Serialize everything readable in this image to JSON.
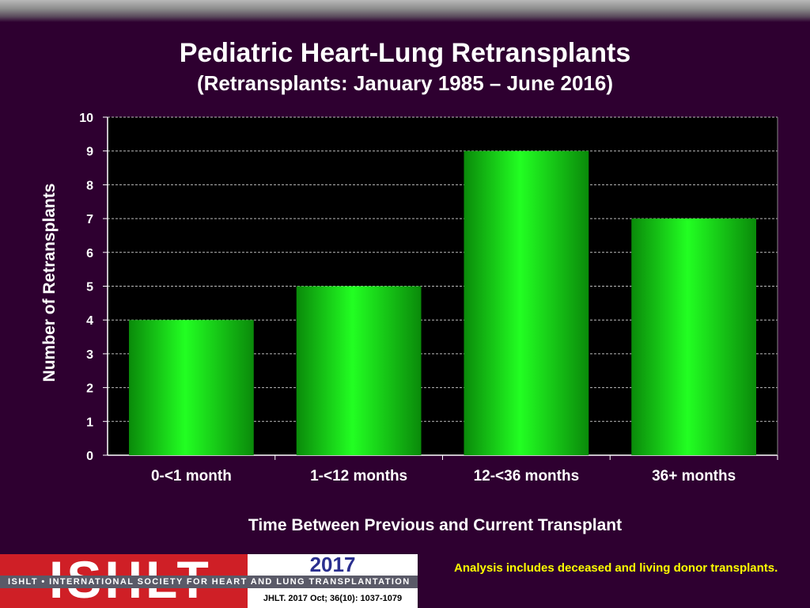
{
  "chart_data": {
    "type": "bar",
    "title": "Pediatric Heart-Lung Retransplants",
    "subtitle": "(Retransplants: January 1985 – June 2016)",
    "xlabel": "Time Between Previous and Current Transplant",
    "ylabel": "Number of Retransplants",
    "categories": [
      "0-<1 month",
      "1-<12 months",
      "12-<36 months",
      "36+ months"
    ],
    "values": [
      4,
      5,
      9,
      7
    ],
    "ylim": [
      0,
      10
    ],
    "yticks": [
      0,
      1,
      2,
      3,
      4,
      5,
      6,
      7,
      8,
      9,
      10
    ],
    "grid": true,
    "colors": {
      "bar": "#22ff22",
      "plot_bg": "#000000",
      "grid": "#bbbbbb"
    }
  },
  "footer": {
    "logo_text": "ISHLT",
    "banner": "ISHLT • INTERNATIONAL SOCIETY FOR HEART AND LUNG TRANSPLANTATION",
    "year": "2017",
    "citation": "JHLT. 2017 Oct; 36(10): 1037-1079",
    "note": "Analysis includes deceased and living donor transplants."
  }
}
